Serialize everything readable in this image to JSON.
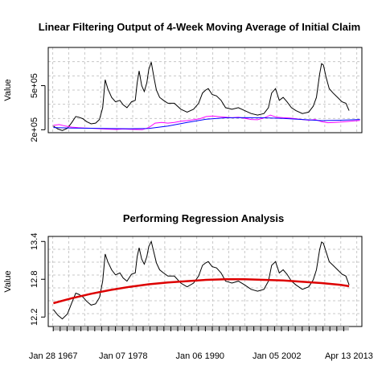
{
  "chart_data": [
    {
      "type": "line",
      "title": "Linear Filtering Output of  4-Week Moving Average of Initial Claim",
      "xlabel": "",
      "ylabel": "Value",
      "y_tick_labels": [
        "2e+05",
        "5e+05"
      ],
      "y_ticks": [
        200000,
        500000
      ],
      "ylim": [
        180000,
        760000
      ],
      "xlim": [
        1966.3,
        2015.3
      ],
      "grid": true,
      "series": [
        {
          "color": "#000000",
          "x": [
            1967.1,
            1967.8,
            1968.5,
            1969.3,
            1970.0,
            1970.6,
            1971.1,
            1971.7,
            1972.3,
            1973.0,
            1973.7,
            1974.3,
            1974.8,
            1975.2,
            1975.6,
            1976.2,
            1976.8,
            1977.5,
            1978.0,
            1978.6,
            1979.3,
            1979.9,
            1980.2,
            1980.5,
            1980.9,
            1981.3,
            1981.7,
            1982.0,
            1982.4,
            1982.8,
            1983.2,
            1983.7,
            1984.3,
            1985.0,
            1986.0,
            1987.0,
            1988.0,
            1989.0,
            1989.8,
            1990.4,
            1990.9,
            1991.3,
            1991.9,
            1992.6,
            1993.3,
            1994.0,
            1995.0,
            1996.0,
            1997.0,
            1998.0,
            1999.0,
            2000.0,
            2000.7,
            2001.2,
            2001.8,
            2002.4,
            2003.0,
            2003.6,
            2004.3,
            2005.0,
            2006.0,
            2007.0,
            2007.7,
            2008.2,
            2008.7,
            2009.0,
            2009.3,
            2009.7,
            2010.2,
            2010.8,
            2011.5,
            2012.2,
            2012.8,
            2013.3
          ],
          "values": [
            225000,
            205000,
            195000,
            210000,
            250000,
            290000,
            285000,
            275000,
            255000,
            240000,
            245000,
            270000,
            350000,
            540000,
            480000,
            420000,
            390000,
            400000,
            370000,
            350000,
            390000,
            400000,
            520000,
            600000,
            500000,
            460000,
            520000,
            610000,
            660000,
            560000,
            470000,
            420000,
            400000,
            380000,
            380000,
            340000,
            320000,
            340000,
            380000,
            450000,
            470000,
            480000,
            440000,
            430000,
            400000,
            350000,
            340000,
            350000,
            330000,
            310000,
            300000,
            310000,
            350000,
            450000,
            480000,
            400000,
            420000,
            390000,
            350000,
            330000,
            310000,
            320000,
            360000,
            420000,
            580000,
            650000,
            640000,
            560000,
            480000,
            450000,
            420000,
            390000,
            380000,
            330000
          ]
        },
        {
          "color": "#ff00ff",
          "x": [
            1967.1,
            1968.0,
            1969.0,
            1970.0,
            1971.0,
            1972.0,
            1973.0,
            1974.0,
            1975.0,
            1976.0,
            1977.0,
            1978.0,
            1979.0,
            1980.0,
            1981.0,
            1982.0,
            1983.0,
            1984.0,
            1985.0,
            1986.0,
            1987.0,
            1988.0,
            1989.0,
            1990.0,
            1991.0,
            1992.0,
            1993.0,
            1994.0,
            1995.0,
            1996.0,
            1997.0,
            1998.0,
            1999.0,
            2000.0,
            2001.0,
            2002.0,
            2003.0,
            2004.0,
            2005.0,
            2006.0,
            2007.0,
            2008.0,
            2009.0,
            2010.0,
            2011.0,
            2012.0,
            2013.0,
            2014.0,
            2015.0
          ],
          "values": [
            230000,
            235000,
            225000,
            218000,
            214000,
            212000,
            210000,
            208000,
            205000,
            203000,
            202000,
            205000,
            203000,
            202000,
            200000,
            215000,
            245000,
            250000,
            245000,
            250000,
            258000,
            262000,
            268000,
            275000,
            290000,
            293000,
            289000,
            285000,
            282000,
            285000,
            278000,
            270000,
            268000,
            280000,
            300000,
            285000,
            282000,
            280000,
            275000,
            270000,
            265000,
            270000,
            255000,
            248000,
            250000,
            252000,
            256000,
            260000,
            263000
          ]
        },
        {
          "color": "#0000ff",
          "x": [
            1967.1,
            1970.0,
            1973.0,
            1976.0,
            1979.0,
            1982.0,
            1985.0,
            1988.0,
            1991.0,
            1994.0,
            1997.0,
            2000.0,
            2003.0,
            2006.0,
            2009.0,
            2012.0,
            2015.0
          ],
          "values": [
            215000,
            212000,
            210000,
            208000,
            207000,
            209000,
            225000,
            250000,
            272000,
            281000,
            283000,
            281000,
            277000,
            270000,
            262000,
            265000,
            270000
          ]
        }
      ]
    },
    {
      "type": "line",
      "title": "Performing Regression Analysis",
      "xlabel": "",
      "ylabel": "Value",
      "y_tick_labels": [
        "12.2",
        "12.8",
        "13.4"
      ],
      "y_ticks": [
        12.2,
        12.8,
        13.4
      ],
      "ylim": [
        12.05,
        13.48
      ],
      "xlim": [
        1966.3,
        2015.3
      ],
      "x_tick_labels": [
        "Jan 28 1967",
        "Jan 07 1978",
        "Jan 06 1990",
        "Jan 05 2002",
        "Apr 13 2013"
      ],
      "x_ticks": [
        1967.08,
        1978.02,
        1990.02,
        2002.01,
        2013.28
      ],
      "grid": true,
      "series": [
        {
          "color": "#000000",
          "x": [
            1967.1,
            1967.8,
            1968.5,
            1969.3,
            1970.0,
            1970.6,
            1971.1,
            1971.7,
            1972.3,
            1973.0,
            1973.7,
            1974.3,
            1974.8,
            1975.2,
            1975.6,
            1976.2,
            1976.8,
            1977.5,
            1978.0,
            1978.6,
            1979.3,
            1979.9,
            1980.2,
            1980.5,
            1980.9,
            1981.3,
            1981.7,
            1982.0,
            1982.4,
            1982.8,
            1983.2,
            1983.7,
            1984.3,
            1985.0,
            1986.0,
            1987.0,
            1988.0,
            1989.0,
            1989.8,
            1990.4,
            1990.9,
            1991.3,
            1991.9,
            1992.6,
            1993.3,
            1994.0,
            1995.0,
            1996.0,
            1997.0,
            1998.0,
            1999.0,
            2000.0,
            2000.7,
            2001.2,
            2001.8,
            2002.4,
            2003.0,
            2003.6,
            2004.3,
            2005.0,
            2006.0,
            2007.0,
            2007.7,
            2008.2,
            2008.7,
            2009.0,
            2009.3,
            2009.7,
            2010.2,
            2010.8,
            2011.5,
            2012.2,
            2012.8,
            2013.3
          ],
          "values": [
            12.32,
            12.23,
            12.17,
            12.25,
            12.43,
            12.58,
            12.56,
            12.52,
            12.45,
            12.39,
            12.41,
            12.51,
            12.77,
            13.2,
            13.08,
            12.95,
            12.87,
            12.9,
            12.82,
            12.77,
            12.88,
            12.9,
            13.16,
            13.3,
            13.12,
            13.04,
            13.16,
            13.32,
            13.4,
            13.23,
            13.06,
            12.95,
            12.9,
            12.85,
            12.85,
            12.74,
            12.68,
            12.74,
            12.85,
            13.02,
            13.06,
            13.08,
            13.0,
            12.98,
            12.9,
            12.77,
            12.74,
            12.77,
            12.71,
            12.64,
            12.61,
            12.64,
            12.77,
            13.02,
            13.08,
            12.9,
            12.95,
            12.88,
            12.77,
            12.71,
            12.64,
            12.68,
            12.79,
            12.95,
            13.27,
            13.39,
            13.37,
            13.24,
            13.08,
            13.02,
            12.95,
            12.88,
            12.85,
            12.71
          ]
        },
        {
          "color": "#dd0000",
          "x": [
            1967.1,
            1970.0,
            1973.0,
            1976.0,
            1979.0,
            1982.0,
            1985.0,
            1988.0,
            1991.0,
            1994.0,
            1997.0,
            2000.0,
            2003.0,
            2006.0,
            2009.0,
            2012.0,
            2013.3
          ],
          "values": [
            12.42,
            12.5,
            12.57,
            12.63,
            12.68,
            12.72,
            12.75,
            12.77,
            12.79,
            12.8,
            12.8,
            12.79,
            12.78,
            12.76,
            12.74,
            12.71,
            12.69
          ]
        }
      ]
    }
  ]
}
